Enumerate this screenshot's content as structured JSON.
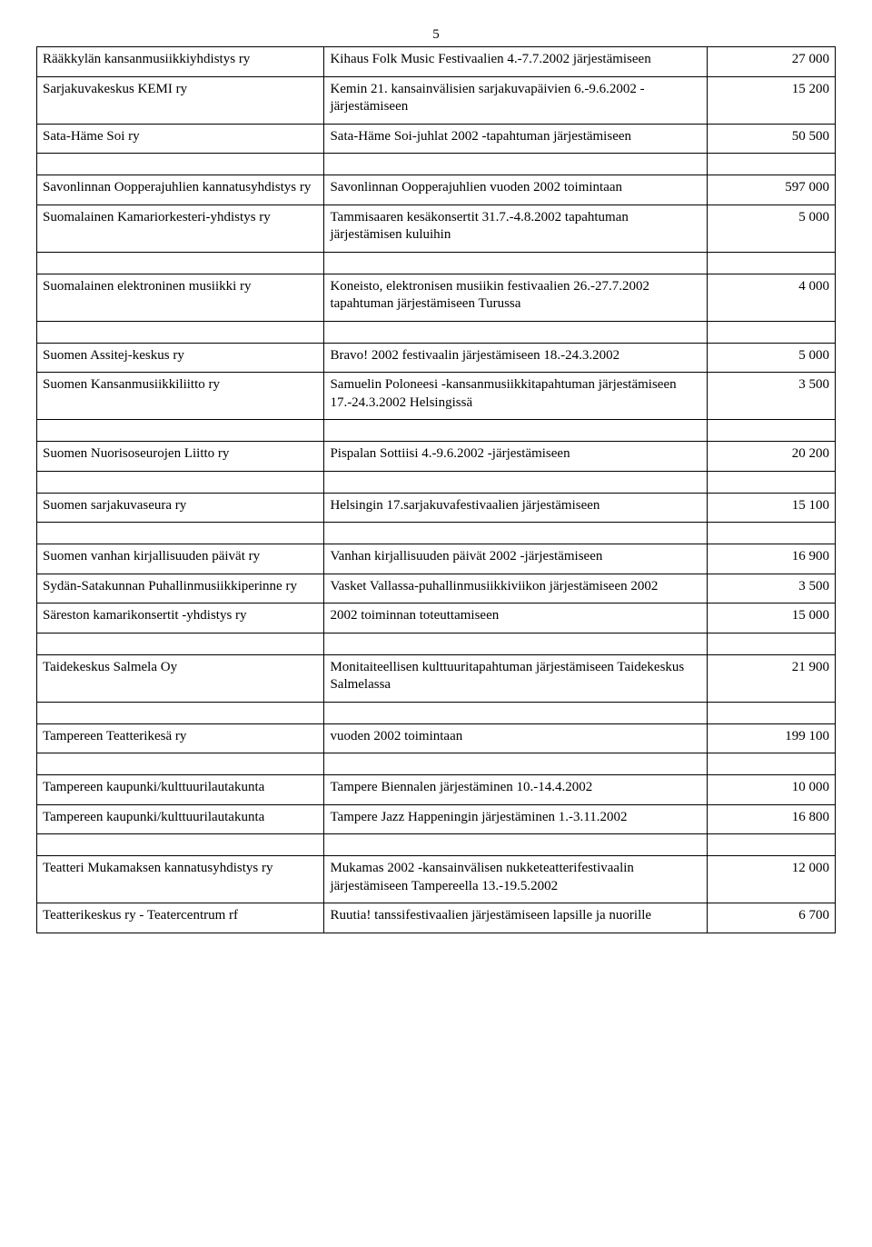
{
  "page_number": "5",
  "table_border_color": "#000000",
  "font_family": "Times New Roman",
  "rows": [
    {
      "org": "Rääkkylän kansanmusiikkiyhdistys ry",
      "desc": "Kihaus Folk Music Festivaalien 4.-7.7.2002 järjestämiseen",
      "amount": "27 000"
    },
    {
      "org": "Sarjakuvakeskus KEMI ry",
      "desc": "Kemin 21. kansainvälisien sarjakuvapäivien  6.-9.6.2002 -järjestämiseen",
      "amount": "15 200"
    },
    {
      "org": "Sata-Häme Soi ry",
      "desc": "Sata-Häme Soi-juhlat 2002 -tapahtuman järjestämiseen",
      "amount": "50 500"
    },
    {
      "org": "Savonlinnan Oopperajuhlien kannatusyhdistys ry",
      "desc": "Savonlinnan Oopperajuhlien vuoden 2002 toimintaan",
      "amount": "597 000"
    },
    {
      "org": "Suomalainen Kamariorkesteri-yhdistys ry",
      "desc": "Tammisaaren kesäkonsertit 31.7.-4.8.2002 tapahtuman järjestämisen kuluihin",
      "amount": "5 000"
    },
    {
      "org": "Suomalainen elektroninen musiikki ry",
      "desc": "Koneisto, elektronisen musiikin festivaalien 26.-27.7.2002 tapahtuman järjestämiseen Turussa",
      "amount": "4 000"
    },
    {
      "org": "Suomen Assitej-keskus ry",
      "desc": "Bravo! 2002 festivaalin järjestämiseen 18.-24.3.2002",
      "amount": "5 000"
    },
    {
      "org": "Suomen Kansanmusiikkiliitto ry",
      "desc": "Samuelin Poloneesi -kansanmusiikkitapahtuman järjestämiseen 17.-24.3.2002 Helsingissä",
      "amount": "3 500"
    },
    {
      "org": "Suomen Nuorisoseurojen Liitto ry",
      "desc": "Pispalan Sottiisi 4.-9.6.2002 -järjestämiseen",
      "amount": "20 200"
    },
    {
      "org": "Suomen sarjakuvaseura ry",
      "desc": "Helsingin 17.sarjakuvafestivaalien järjestämiseen",
      "amount": "15 100"
    },
    {
      "org": "Suomen vanhan kirjallisuuden päivät ry",
      "desc": "Vanhan kirjallisuuden päivät 2002 -järjestämiseen",
      "amount": "16 900"
    },
    {
      "org": "Sydän-Satakunnan Puhallinmusiikkiperinne ry",
      "desc": "Vasket Vallassa-puhallinmusiikkiviikon järjestämiseen 2002",
      "amount": "3 500"
    },
    {
      "org": "Säreston kamarikonsertit -yhdistys ry",
      "desc": "2002 toiminnan toteuttamiseen",
      "amount": "15 000"
    },
    {
      "org": "Taidekeskus Salmela Oy",
      "desc": "Monitaiteellisen kulttuuritapahtuman järjestämiseen Taidekeskus Salmelassa",
      "amount": "21 900"
    },
    {
      "org": "Tampereen Teatterikesä ry",
      "desc": "vuoden 2002 toimintaan",
      "amount": "199 100"
    },
    {
      "org": "Tampereen kaupunki/kulttuurilautakunta",
      "desc": "Tampere Biennalen järjestäminen 10.-14.4.2002",
      "amount": "10 000"
    },
    {
      "org": "Tampereen kaupunki/kulttuurilautakunta",
      "desc": "Tampere Jazz Happeningin järjestäminen 1.-3.11.2002",
      "amount": "16 800"
    },
    {
      "org": "Teatteri Mukamaksen kannatusyhdistys ry",
      "desc": "Mukamas 2002 -kansainvälisen nukketeatterifestivaalin järjestämiseen Tampereella 13.-19.5.2002",
      "amount": "12 000"
    },
    {
      "org": "Teatterikeskus ry - Teatercentrum rf",
      "desc": "Ruutia! tanssifestivaalien järjestämiseen lapsille ja nuorille",
      "amount": "6 700"
    }
  ],
  "spacer_after": [
    2,
    4,
    5,
    7,
    8,
    9,
    12,
    13,
    14,
    16
  ]
}
